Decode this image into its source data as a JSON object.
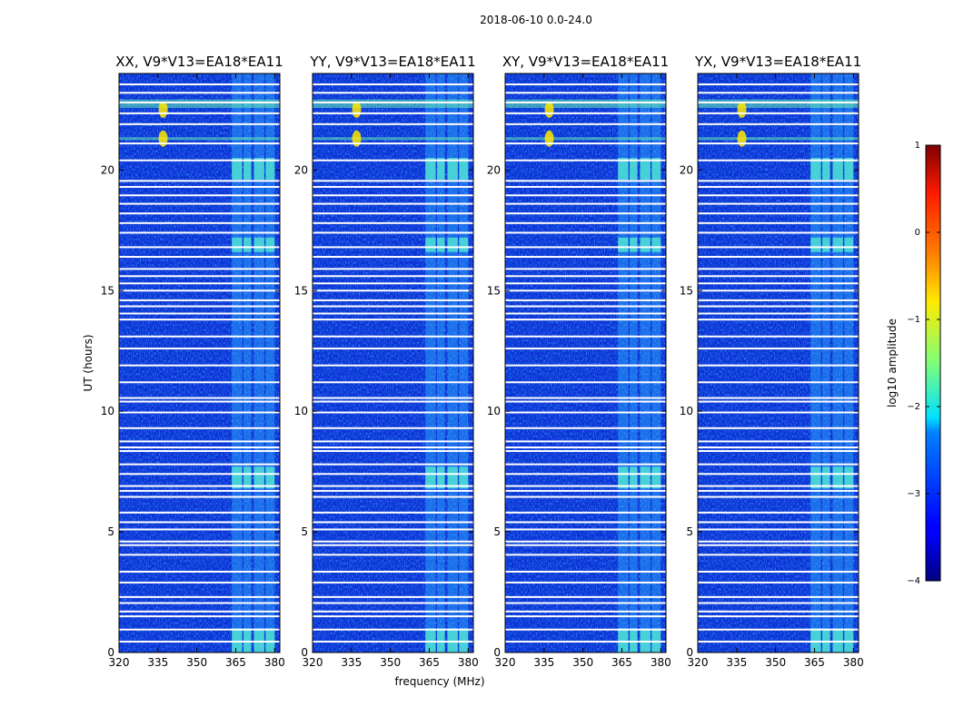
{
  "chart_data": {
    "type": "heatmap",
    "suptitle": "2018-06-10 0.0-24.0",
    "xlabel": "frequency (MHz)",
    "ylabel": "UT (hours)",
    "colormap": "jet",
    "x_range": [
      320,
      382
    ],
    "y_range": [
      0,
      24
    ],
    "x_ticks": [
      320,
      335,
      350,
      365,
      380
    ],
    "y_ticks": [
      0,
      5,
      10,
      15,
      20
    ],
    "panels": [
      {
        "title": "XX, V9*V13=EA18*EA11"
      },
      {
        "title": "YY, V9*V13=EA18*EA11"
      },
      {
        "title": "XY, V9*V13=EA18*EA11"
      },
      {
        "title": "YX, V9*V13=EA18*EA11"
      }
    ],
    "rfi_bands_mhz": [
      [
        363.5,
        367.5
      ],
      [
        368,
        371
      ],
      [
        372,
        376
      ],
      [
        376.5,
        380
      ]
    ],
    "strong_rfi_hours": [
      [
        0.0,
        1.0
      ],
      [
        6.8,
        7.7
      ],
      [
        16.6,
        17.2
      ],
      [
        19.6,
        20.5
      ]
    ],
    "flagged_hours": [
      0.45,
      0.95,
      1.5,
      1.7,
      2.05,
      2.3,
      2.9,
      3.35,
      4.05,
      4.45,
      4.6,
      5.1,
      5.4,
      5.8,
      6.45,
      6.7,
      6.9,
      7.4,
      7.8,
      8.35,
      8.5,
      8.75,
      9.3,
      9.95,
      10.4,
      10.55,
      11.2,
      11.9,
      12.6,
      13.1,
      13.8,
      14.05,
      14.35,
      14.6,
      15.0,
      15.3,
      15.6,
      15.9,
      16.4,
      16.8,
      17.4,
      17.8,
      18.2,
      18.6,
      18.95,
      19.3,
      19.55,
      20.4,
      21.1,
      21.9,
      22.35,
      22.8,
      23.2,
      23.55
    ],
    "colorbar": {
      "label": "log10 amplitude",
      "range": [
        -4,
        1
      ],
      "ticks": [
        "1",
        "0",
        "−1",
        "−2",
        "−3",
        "−4"
      ],
      "tick_values": [
        1,
        0,
        -1,
        -2,
        -3,
        -4
      ]
    }
  }
}
